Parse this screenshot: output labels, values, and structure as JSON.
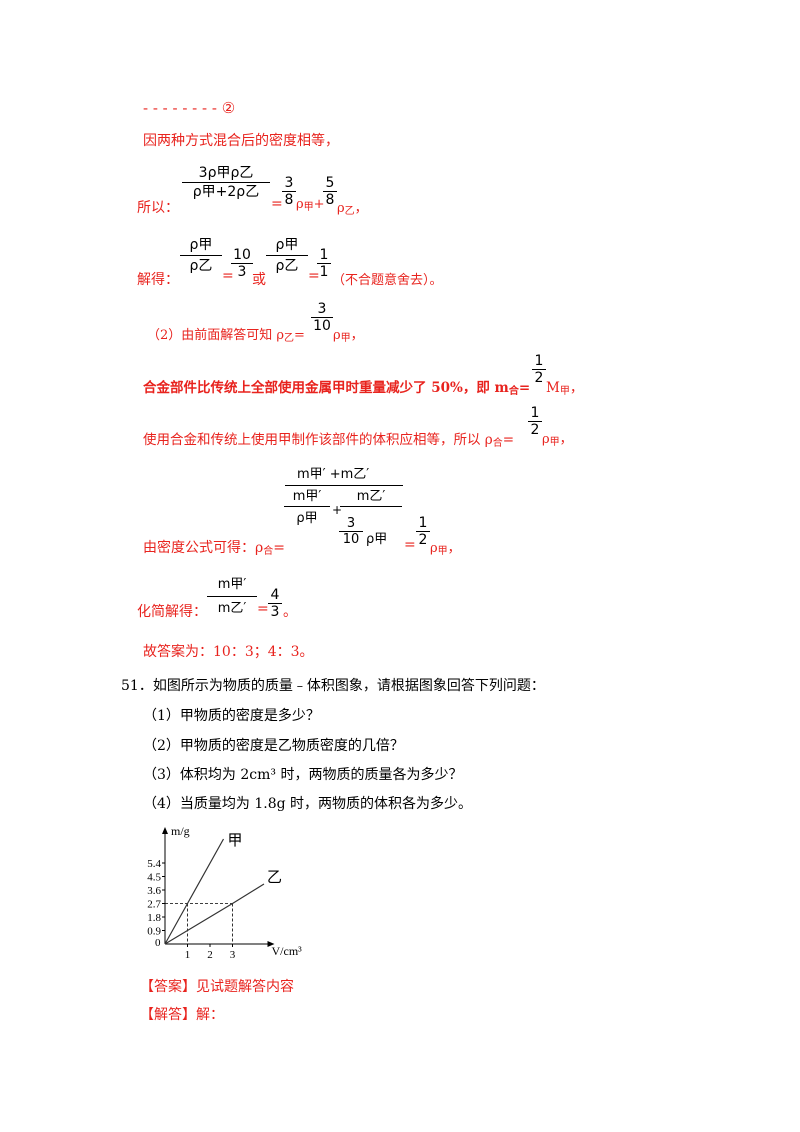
{
  "solution": {
    "eq_marker": "- - - - - - - - ②",
    "same_density": "因两种方式混合后的密度相等，",
    "so_label": "所以：",
    "eq1": {
      "lhs_num": "3ρ甲ρ乙",
      "lhs_den": "ρ甲+2ρ乙",
      "eq": "=",
      "f1_num": "3",
      "f1_den": "8",
      "rho_jia": "ρ",
      "sub_jia": "甲",
      "plus": "+",
      "f2_num": "5",
      "f2_den": "8",
      "rho_yi": "ρ",
      "sub_yi": "乙",
      "tail": "，"
    },
    "solve_label": "解得：",
    "ratio": {
      "l_num": "ρ甲",
      "l_den": "ρ乙",
      "eq": "=",
      "r1_num": "10",
      "r1_den": "3",
      "or": "或",
      "r2_num": "1",
      "r2_den": "1",
      "note": "（不合题意舍去）。"
    },
    "part2": {
      "prefix": "（2）由前面解答可知 ρ",
      "sub_yi": "乙",
      "eq": "=",
      "f_num": "3",
      "f_den": "10",
      "rho": "ρ",
      "sub_jia": "甲",
      "tail": "，"
    },
    "alloy_line": {
      "text": "合金部件比传统上全部使用金属甲时重量减少了 50%，即 m",
      "sub": "合",
      "eq": "=",
      "f_num": "1",
      "f_den": "2",
      "m": "M",
      "m_sub": "甲",
      "tail": "，"
    },
    "volume_line": {
      "text": "使用合金和传统上使用甲制作该部件的体积应相等，所以 ρ",
      "sub": "合",
      "eq": "=",
      "f_num": "1",
      "f_den": "2",
      "rho": "ρ",
      "sub_jia": "甲",
      "tail": "，"
    },
    "density_formula": {
      "label": "由密度公式可得：ρ",
      "label_sub": "合",
      "eq": "=",
      "top_num": "m甲′ +m乙′",
      "inner1_num": "m甲′",
      "inner1_den": "ρ甲",
      "plus": "+",
      "inner2_num": "m乙′",
      "inner2_den_num": "3",
      "inner2_den_den": "10",
      "inner2_rho": "ρ甲",
      "eq2": "=",
      "f_num": "1",
      "f_den": "2",
      "rho": "ρ",
      "sub_jia": "甲",
      "tail": "，"
    },
    "simplify": {
      "label": "化简解得：",
      "l_num": "m甲′",
      "l_den": "m乙′",
      "eq": "=",
      "r_num": "4",
      "r_den": "3",
      "tail": "。"
    },
    "final_answer": "故答案为：10：3；4：3。"
  },
  "question": {
    "stem": "51．如图所示为物质的质量﹣体积图象，请根据图象回答下列问题：",
    "items": [
      "（1）甲物质的密度是多少？",
      "（2）甲物质的密度是乙物质密度的几倍？",
      "（3）体积均为 2cm³ 时，两物质的质量各为多少？",
      "（4）当质量均为 1.8g 时，两物质的体积各为多少。"
    ]
  },
  "chart_data": {
    "type": "line",
    "xlabel": "V/cm³",
    "ylabel": "m/g",
    "x_ticks": [
      "1",
      "2",
      "3"
    ],
    "y_ticks": [
      "0.9",
      "1.8",
      "2.7",
      "3.6",
      "4.5",
      "5.4"
    ],
    "origin_label": "0",
    "xlim": [
      0,
      4.6
    ],
    "ylim": [
      0,
      7.4
    ],
    "series": [
      {
        "name": "甲",
        "x": [
          0,
          1,
          2.6
        ],
        "y": [
          0,
          2.7,
          7.0
        ]
      },
      {
        "name": "乙",
        "x": [
          0,
          3,
          4.4
        ],
        "y": [
          0,
          2.7,
          4.0
        ]
      }
    ],
    "reference_point": {
      "x": 3,
      "y": 2.7
    },
    "reference_point_jia": {
      "x": 1,
      "y": 2.7
    },
    "line_color": "#333333"
  },
  "answer": {
    "answer_label": "【答案】",
    "answer_text": "见试题解答内容",
    "analysis_label": "【解答】",
    "analysis_text": "解："
  }
}
